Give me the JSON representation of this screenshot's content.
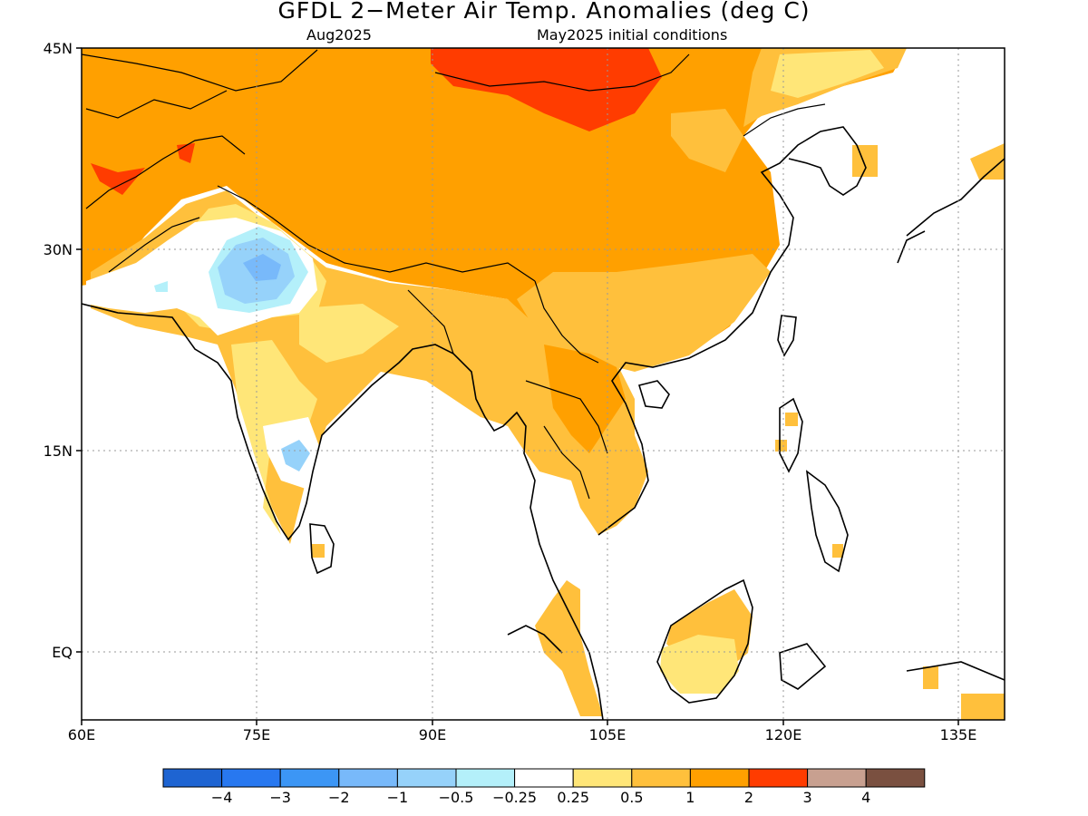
{
  "header": {
    "title": "GFDL 2−Meter Air Temp. Anomalies (deg C)",
    "subtitle_left": "Aug2025",
    "subtitle_right": "May2025 initial conditions"
  },
  "map": {
    "lat_labels": [
      "45N",
      "30N",
      "15N",
      "EQ"
    ],
    "lon_labels": [
      "60E",
      "75E",
      "90E",
      "105E",
      "120E",
      "135E"
    ],
    "lat_range": [
      -5,
      45
    ],
    "lon_range": [
      60,
      140
    ]
  },
  "colorbar": {
    "labels": [
      "−4",
      "−3",
      "−2",
      "−1",
      "−0.5",
      "−0.25",
      "0.25",
      "0.5",
      "1",
      "2",
      "3",
      "4"
    ],
    "colors": [
      "#1e64d2",
      "#2878f0",
      "#3c96f5",
      "#78b9fa",
      "#96d2fa",
      "#b4f0fa",
      "#ffffff",
      "#ffe678",
      "#ffc03c",
      "#ffa000",
      "#ff3c00",
      "#c8a090",
      "#7a5040"
    ]
  }
}
